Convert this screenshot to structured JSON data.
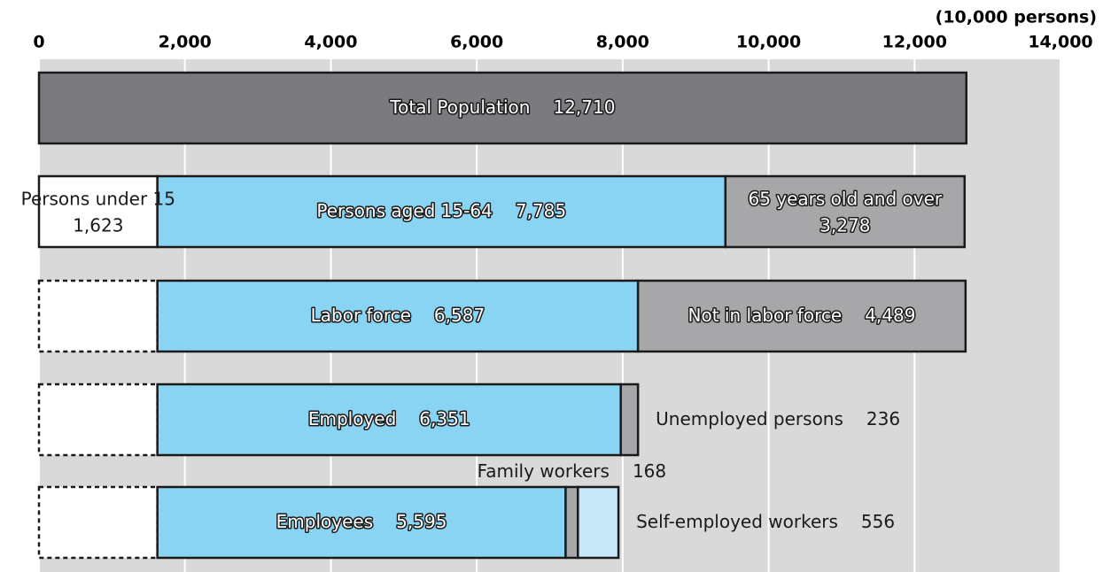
{
  "chart_data": {
    "type": "stacked-bar",
    "unit_label": "(10,000 persons)",
    "xlim": [
      0,
      14000
    ],
    "xticks": [
      0,
      {
        "value": 2000,
        "label": "2,000"
      },
      {
        "value": 4000,
        "label": "4,000"
      },
      {
        "value": 6000,
        "label": "6,000"
      },
      {
        "value": 8000,
        "label": "8,000"
      },
      {
        "value": 10000,
        "label": "10,000"
      },
      {
        "value": 12000,
        "label": "12,000"
      },
      {
        "value": 14000,
        "label": "14,000"
      }
    ],
    "grid": true,
    "rows": [
      {
        "segments": [
          {
            "name": "Total Population",
            "value": 12710,
            "value_label": "12,710",
            "color": "#7b7a7f"
          }
        ]
      },
      {
        "segments": [
          {
            "name": "Persons under 15",
            "value": 1623,
            "value_label": "1,623",
            "color": "#ffffff"
          },
          {
            "name": "Persons aged 15-64",
            "value": 7785,
            "value_label": "7,785",
            "color": "#89d4f2"
          },
          {
            "name": "65 years old and over",
            "value": 3278,
            "value_label": "3,278",
            "color": "#a7a7aa"
          }
        ]
      },
      {
        "segments": [
          {
            "value": 1623,
            "color": "#ffffff",
            "dashed": true
          },
          {
            "name": "Labor force",
            "value": 6587,
            "value_label": "6,587",
            "color": "#89d4f2"
          },
          {
            "name": "Not in labor force",
            "value": 4489,
            "value_label": "4,489",
            "color": "#a7a7aa"
          }
        ]
      },
      {
        "segments": [
          {
            "value": 1623,
            "color": "#ffffff",
            "dashed": true
          },
          {
            "name": "Employed",
            "value": 6351,
            "value_label": "6,351",
            "color": "#89d4f2"
          },
          {
            "name": "Unemployed persons",
            "value": 236,
            "color": "#a7a7aa"
          }
        ]
      },
      {
        "segments": [
          {
            "value": 1623,
            "color": "#ffffff",
            "dashed": true
          },
          {
            "name": "Employees",
            "value": 5595,
            "value_label": "5,595",
            "color": "#89d4f2"
          },
          {
            "name": "Family workers",
            "value": 168,
            "color": "#a7a7aa"
          },
          {
            "name": "Self-employed workers",
            "value": 556,
            "color": "#c6e7f8"
          }
        ]
      }
    ]
  }
}
